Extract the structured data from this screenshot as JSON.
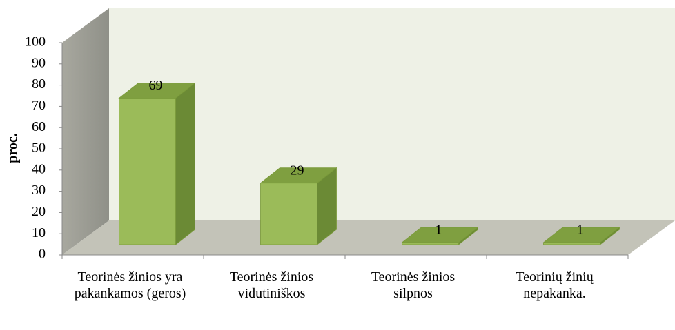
{
  "chart_data": {
    "type": "bar",
    "y_label": "proc.",
    "categories": [
      "Teorinės žinios yra pakankamos (geros)",
      "Teorinės žinios vidutiniškos",
      "Teorinės žinios silpnos",
      "Teorinių žinių nepakanka."
    ],
    "values": [
      69,
      29,
      1,
      1
    ],
    "color": "#9bbb59",
    "ylim": [
      0,
      100
    ],
    "yticks": [
      0,
      10,
      20,
      30,
      40,
      50,
      60,
      70,
      80,
      90,
      100
    ],
    "grid": false
  }
}
